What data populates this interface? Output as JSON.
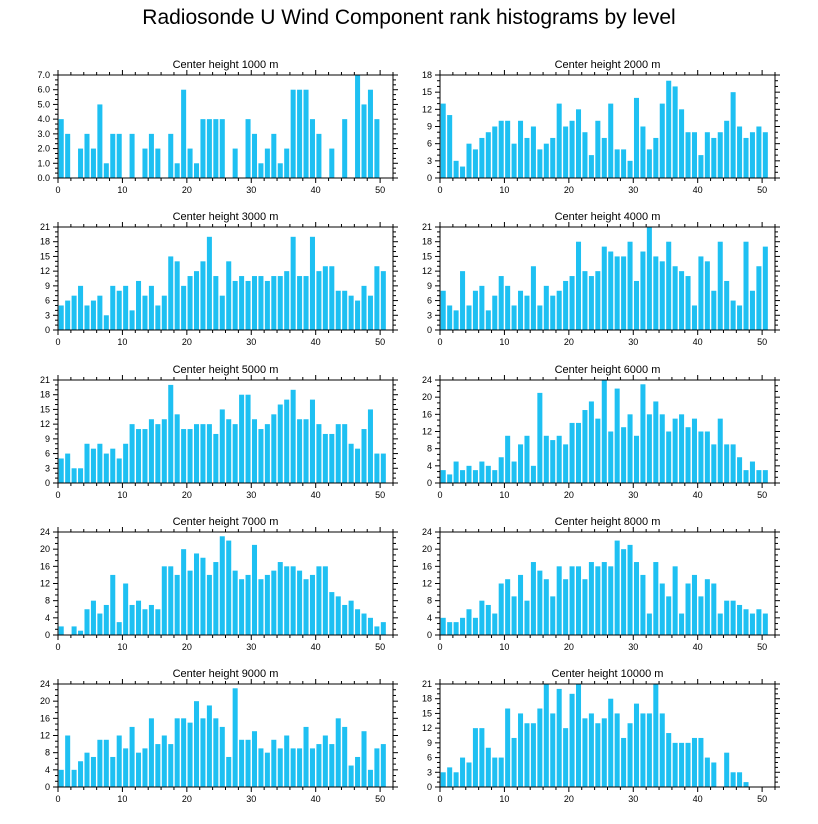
{
  "title": "Radiosonde U Wind Component rank histograms by level",
  "colors": {
    "bar": "#1ec0f2",
    "axis": "#000000",
    "background": "#ffffff"
  },
  "chart_data": [
    {
      "type": "bar",
      "title": "Center height 1000 m",
      "ylim": [
        0,
        7
      ],
      "yticks": [
        0,
        1,
        2,
        3,
        4,
        5,
        6,
        7
      ],
      "ytick_labels": [
        "0.0",
        "1.0",
        "2.0",
        "3.0",
        "4.0",
        "5.0",
        "6.0",
        "7.0"
      ],
      "xlim": [
        0,
        52
      ],
      "xticks": [
        0,
        10,
        20,
        30,
        40,
        50
      ],
      "x": [
        1,
        2,
        3,
        4,
        5,
        6,
        7,
        8,
        9,
        10,
        11,
        12,
        13,
        14,
        15,
        16,
        17,
        18,
        19,
        20,
        21,
        22,
        23,
        24,
        25,
        26,
        27,
        28,
        29,
        30,
        31,
        32,
        33,
        34,
        35,
        36,
        37,
        38,
        39,
        40,
        41,
        42,
        43,
        44,
        45,
        46,
        47,
        48,
        49,
        50,
        51,
        52
      ],
      "values": [
        4,
        3,
        0,
        2,
        3,
        2,
        5,
        1,
        3,
        3,
        0,
        3,
        0,
        2,
        3,
        2,
        0,
        3,
        1,
        6,
        2,
        1,
        4,
        4,
        4,
        4,
        0,
        2,
        0,
        4,
        3,
        1,
        2,
        3,
        1,
        2,
        6,
        6,
        6,
        4,
        3,
        0,
        2,
        0,
        4,
        0,
        7,
        5,
        6,
        4,
        0,
        0
      ]
    },
    {
      "type": "bar",
      "title": "Center height 2000 m",
      "ylim": [
        0,
        18
      ],
      "yticks": [
        0,
        3,
        6,
        9,
        12,
        15,
        18
      ],
      "ytick_labels": [
        "0",
        "3",
        "6",
        "9",
        "12",
        "15",
        "18"
      ],
      "xlim": [
        0,
        52
      ],
      "xticks": [
        0,
        10,
        20,
        30,
        40,
        50
      ],
      "x": [
        1,
        2,
        3,
        4,
        5,
        6,
        7,
        8,
        9,
        10,
        11,
        12,
        13,
        14,
        15,
        16,
        17,
        18,
        19,
        20,
        21,
        22,
        23,
        24,
        25,
        26,
        27,
        28,
        29,
        30,
        31,
        32,
        33,
        34,
        35,
        36,
        37,
        38,
        39,
        40,
        41,
        42,
        43,
        44,
        45,
        46,
        47,
        48,
        49,
        50,
        51,
        52
      ],
      "values": [
        13,
        11,
        3,
        2,
        6,
        5,
        7,
        8,
        9,
        10,
        10,
        6,
        10,
        7,
        9,
        5,
        6,
        7,
        13,
        9,
        10,
        12,
        8,
        4,
        10,
        7,
        13,
        5,
        5,
        3,
        14,
        9,
        5,
        7,
        13,
        17,
        16,
        12,
        8,
        8,
        4,
        8,
        7,
        8,
        10,
        15,
        9,
        7,
        8,
        9,
        8,
        0
      ]
    },
    {
      "type": "bar",
      "title": "Center height 3000 m",
      "ylim": [
        0,
        21
      ],
      "yticks": [
        0,
        3,
        6,
        9,
        12,
        15,
        18,
        21
      ],
      "ytick_labels": [
        "0",
        "3",
        "6",
        "9",
        "12",
        "15",
        "18",
        "21"
      ],
      "xlim": [
        0,
        52
      ],
      "xticks": [
        0,
        10,
        20,
        30,
        40,
        50
      ],
      "x": [
        1,
        2,
        3,
        4,
        5,
        6,
        7,
        8,
        9,
        10,
        11,
        12,
        13,
        14,
        15,
        16,
        17,
        18,
        19,
        20,
        21,
        22,
        23,
        24,
        25,
        26,
        27,
        28,
        29,
        30,
        31,
        32,
        33,
        34,
        35,
        36,
        37,
        38,
        39,
        40,
        41,
        42,
        43,
        44,
        45,
        46,
        47,
        48,
        49,
        50,
        51,
        52
      ],
      "values": [
        5,
        6,
        7,
        9,
        5,
        6,
        7,
        3,
        9,
        8,
        9,
        4,
        10,
        7,
        9,
        5,
        7,
        15,
        14,
        9,
        11,
        12,
        14,
        19,
        11,
        7,
        14,
        10,
        11,
        10,
        11,
        11,
        10,
        11,
        11,
        12,
        19,
        11,
        11,
        19,
        12,
        13,
        13,
        8,
        8,
        7,
        6,
        9,
        7,
        13,
        12,
        0
      ]
    },
    {
      "type": "bar",
      "title": "Center height 4000 m",
      "ylim": [
        0,
        21
      ],
      "yticks": [
        0,
        3,
        6,
        9,
        12,
        15,
        18,
        21
      ],
      "ytick_labels": [
        "0",
        "3",
        "6",
        "9",
        "12",
        "15",
        "18",
        "21"
      ],
      "xlim": [
        0,
        52
      ],
      "xticks": [
        0,
        10,
        20,
        30,
        40,
        50
      ],
      "x": [
        1,
        2,
        3,
        4,
        5,
        6,
        7,
        8,
        9,
        10,
        11,
        12,
        13,
        14,
        15,
        16,
        17,
        18,
        19,
        20,
        21,
        22,
        23,
        24,
        25,
        26,
        27,
        28,
        29,
        30,
        31,
        32,
        33,
        34,
        35,
        36,
        37,
        38,
        39,
        40,
        41,
        42,
        43,
        44,
        45,
        46,
        47,
        48,
        49,
        50,
        51,
        52
      ],
      "values": [
        8,
        5,
        4,
        12,
        5,
        8,
        9,
        4,
        7,
        11,
        9,
        5,
        8,
        7,
        13,
        5,
        9,
        7,
        8,
        10,
        11,
        18,
        12,
        11,
        12,
        17,
        16,
        15,
        15,
        18,
        10,
        16,
        21,
        15,
        14,
        18,
        13,
        12,
        11,
        5,
        15,
        14,
        8,
        18,
        10,
        6,
        5,
        18,
        8,
        13,
        17,
        0
      ]
    },
    {
      "type": "bar",
      "title": "Center height 5000 m",
      "ylim": [
        0,
        21
      ],
      "yticks": [
        0,
        3,
        6,
        9,
        12,
        15,
        18,
        21
      ],
      "ytick_labels": [
        "0",
        "3",
        "6",
        "9",
        "12",
        "15",
        "18",
        "21"
      ],
      "xlim": [
        0,
        52
      ],
      "xticks": [
        0,
        10,
        20,
        30,
        40,
        50
      ],
      "x": [
        1,
        2,
        3,
        4,
        5,
        6,
        7,
        8,
        9,
        10,
        11,
        12,
        13,
        14,
        15,
        16,
        17,
        18,
        19,
        20,
        21,
        22,
        23,
        24,
        25,
        26,
        27,
        28,
        29,
        30,
        31,
        32,
        33,
        34,
        35,
        36,
        37,
        38,
        39,
        40,
        41,
        42,
        43,
        44,
        45,
        46,
        47,
        48,
        49,
        50,
        51,
        52
      ],
      "values": [
        5,
        6,
        3,
        3,
        8,
        7,
        8,
        6,
        7,
        5,
        8,
        12,
        11,
        11,
        13,
        12,
        13,
        20,
        14,
        11,
        11,
        12,
        12,
        12,
        10,
        15,
        13,
        12,
        18,
        18,
        13,
        11,
        12,
        14,
        16,
        17,
        19,
        13,
        13,
        17,
        12,
        10,
        10,
        12,
        12,
        8,
        7,
        11,
        15,
        6,
        6,
        0
      ]
    },
    {
      "type": "bar",
      "title": "Center height 6000 m",
      "ylim": [
        0,
        24
      ],
      "yticks": [
        0,
        4,
        8,
        12,
        16,
        20,
        24
      ],
      "ytick_labels": [
        "0",
        "4",
        "8",
        "12",
        "16",
        "20",
        "24"
      ],
      "xlim": [
        0,
        52
      ],
      "xticks": [
        0,
        10,
        20,
        30,
        40,
        50
      ],
      "x": [
        1,
        2,
        3,
        4,
        5,
        6,
        7,
        8,
        9,
        10,
        11,
        12,
        13,
        14,
        15,
        16,
        17,
        18,
        19,
        20,
        21,
        22,
        23,
        24,
        25,
        26,
        27,
        28,
        29,
        30,
        31,
        32,
        33,
        34,
        35,
        36,
        37,
        38,
        39,
        40,
        41,
        42,
        43,
        44,
        45,
        46,
        47,
        48,
        49,
        50,
        51,
        52
      ],
      "values": [
        3,
        2,
        5,
        3,
        4,
        3,
        5,
        4,
        3,
        6,
        11,
        5,
        9,
        11,
        4,
        21,
        11,
        10,
        11,
        9,
        14,
        14,
        17,
        19,
        15,
        24,
        12,
        22,
        13,
        16,
        11,
        23,
        16,
        19,
        16,
        12,
        15,
        16,
        13,
        15,
        12,
        12,
        9,
        15,
        9,
        9,
        6,
        3,
        5,
        3,
        3,
        0
      ]
    },
    {
      "type": "bar",
      "title": "Center height 7000 m",
      "ylim": [
        0,
        24
      ],
      "yticks": [
        0,
        4,
        8,
        12,
        16,
        20,
        24
      ],
      "ytick_labels": [
        "0",
        "4",
        "8",
        "12",
        "16",
        "20",
        "24"
      ],
      "xlim": [
        0,
        52
      ],
      "xticks": [
        0,
        10,
        20,
        30,
        40,
        50
      ],
      "x": [
        1,
        2,
        3,
        4,
        5,
        6,
        7,
        8,
        9,
        10,
        11,
        12,
        13,
        14,
        15,
        16,
        17,
        18,
        19,
        20,
        21,
        22,
        23,
        24,
        25,
        26,
        27,
        28,
        29,
        30,
        31,
        32,
        33,
        34,
        35,
        36,
        37,
        38,
        39,
        40,
        41,
        42,
        43,
        44,
        45,
        46,
        47,
        48,
        49,
        50,
        51,
        52
      ],
      "values": [
        2,
        0,
        2,
        1,
        6,
        8,
        5,
        7,
        14,
        3,
        12,
        7,
        8,
        6,
        7,
        6,
        16,
        16,
        14,
        20,
        15,
        19,
        18,
        14,
        17,
        23,
        22,
        15,
        13,
        14,
        21,
        13,
        14,
        15,
        17,
        16,
        16,
        15,
        13,
        14,
        16,
        16,
        10,
        9,
        7,
        8,
        6,
        5,
        4,
        2,
        3,
        0
      ]
    },
    {
      "type": "bar",
      "title": "Center height 8000 m",
      "ylim": [
        0,
        24
      ],
      "yticks": [
        0,
        4,
        8,
        12,
        16,
        20,
        24
      ],
      "ytick_labels": [
        "0",
        "4",
        "8",
        "12",
        "16",
        "20",
        "24"
      ],
      "xlim": [
        0,
        52
      ],
      "xticks": [
        0,
        10,
        20,
        30,
        40,
        50
      ],
      "x": [
        1,
        2,
        3,
        4,
        5,
        6,
        7,
        8,
        9,
        10,
        11,
        12,
        13,
        14,
        15,
        16,
        17,
        18,
        19,
        20,
        21,
        22,
        23,
        24,
        25,
        26,
        27,
        28,
        29,
        30,
        31,
        32,
        33,
        34,
        35,
        36,
        37,
        38,
        39,
        40,
        41,
        42,
        43,
        44,
        45,
        46,
        47,
        48,
        49,
        50,
        51,
        52
      ],
      "values": [
        4,
        3,
        3,
        4,
        6,
        4,
        8,
        7,
        5,
        12,
        13,
        9,
        14,
        8,
        17,
        15,
        13,
        9,
        16,
        13,
        16,
        16,
        13,
        17,
        16,
        17,
        16,
        22,
        20,
        21,
        17,
        14,
        5,
        17,
        12,
        9,
        16,
        5,
        12,
        14,
        9,
        13,
        12,
        5,
        8,
        8,
        7,
        6,
        5,
        6,
        5,
        0
      ]
    },
    {
      "type": "bar",
      "title": "Center height 9000 m",
      "ylim": [
        0,
        24
      ],
      "yticks": [
        0,
        4,
        8,
        12,
        16,
        20,
        24
      ],
      "ytick_labels": [
        "0",
        "4",
        "8",
        "12",
        "16",
        "20",
        "24"
      ],
      "xlim": [
        0,
        52
      ],
      "xticks": [
        0,
        10,
        20,
        30,
        40,
        50
      ],
      "x": [
        1,
        2,
        3,
        4,
        5,
        6,
        7,
        8,
        9,
        10,
        11,
        12,
        13,
        14,
        15,
        16,
        17,
        18,
        19,
        20,
        21,
        22,
        23,
        24,
        25,
        26,
        27,
        28,
        29,
        30,
        31,
        32,
        33,
        34,
        35,
        36,
        37,
        38,
        39,
        40,
        41,
        42,
        43,
        44,
        45,
        46,
        47,
        48,
        49,
        50,
        51,
        52
      ],
      "values": [
        4,
        12,
        4,
        6,
        8,
        7,
        11,
        11,
        7,
        12,
        9,
        14,
        8,
        9,
        16,
        10,
        12,
        10,
        16,
        16,
        15,
        20,
        16,
        19,
        16,
        14,
        7,
        23,
        11,
        11,
        13,
        9,
        8,
        11,
        9,
        12,
        9,
        9,
        14,
        9,
        10,
        12,
        10,
        16,
        14,
        5,
        7,
        13,
        4,
        9,
        10,
        0
      ]
    },
    {
      "type": "bar",
      "title": "Center height 10000 m",
      "ylim": [
        0,
        21
      ],
      "yticks": [
        0,
        3,
        6,
        9,
        12,
        15,
        18,
        21
      ],
      "ytick_labels": [
        "0",
        "3",
        "6",
        "9",
        "12",
        "15",
        "18",
        "21"
      ],
      "xlim": [
        0,
        52
      ],
      "xticks": [
        0,
        10,
        20,
        30,
        40,
        50
      ],
      "x": [
        1,
        2,
        3,
        4,
        5,
        6,
        7,
        8,
        9,
        10,
        11,
        12,
        13,
        14,
        15,
        16,
        17,
        18,
        19,
        20,
        21,
        22,
        23,
        24,
        25,
        26,
        27,
        28,
        29,
        30,
        31,
        32,
        33,
        34,
        35,
        36,
        37,
        38,
        39,
        40,
        41,
        42,
        43,
        44,
        45,
        46,
        47,
        48,
        49,
        50,
        51,
        52
      ],
      "values": [
        3,
        4,
        3,
        6,
        5,
        12,
        12,
        8,
        6,
        6,
        16,
        10,
        15,
        13,
        13,
        16,
        21,
        15,
        20,
        12,
        19,
        21,
        14,
        15,
        13,
        14,
        18,
        15,
        10,
        13,
        17,
        15,
        15,
        21,
        15,
        11,
        9,
        9,
        9,
        10,
        10,
        6,
        5,
        0,
        7,
        3,
        3,
        1,
        0,
        0,
        0,
        0
      ]
    }
  ]
}
